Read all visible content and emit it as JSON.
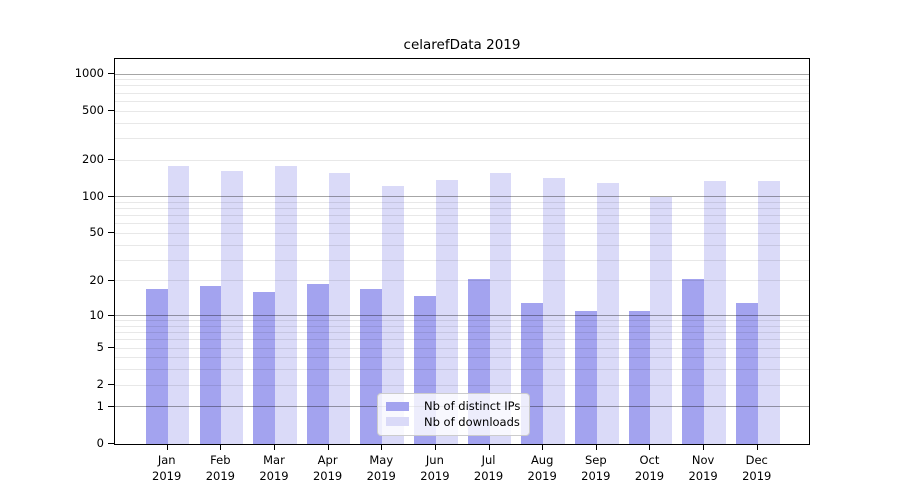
{
  "chart_data": {
    "type": "bar",
    "title": "celarefData 2019",
    "categories": [
      "Jan",
      "Feb",
      "Mar",
      "Apr",
      "May",
      "Jun",
      "Jul",
      "Aug",
      "Sep",
      "Oct",
      "Nov",
      "Dec"
    ],
    "x_year_label": "2019",
    "series": [
      {
        "name": "Nb of distinct IPs",
        "color": "#a3a3ef",
        "values": [
          17,
          18,
          16,
          19,
          17,
          15,
          21,
          13,
          11,
          11,
          21,
          13
        ]
      },
      {
        "name": "Nb of downloads",
        "color": "#dadaf8",
        "values": [
          180,
          164,
          179,
          156,
          123,
          138,
          158,
          142,
          130,
          99,
          134,
          134
        ]
      }
    ],
    "xlabel": "",
    "ylabel": "",
    "y_axis": {
      "scale": "log10(value+1)",
      "tick_values": [
        0,
        1,
        2,
        5,
        10,
        20,
        50,
        100,
        200,
        500,
        1000
      ],
      "major_grid_values": [
        1,
        10,
        100,
        1000
      ],
      "minor_grid_values": [
        2,
        3,
        4,
        5,
        6,
        7,
        8,
        9,
        20,
        30,
        40,
        50,
        60,
        70,
        80,
        90,
        200,
        300,
        400,
        500,
        600,
        700,
        800,
        900
      ],
      "ylim": [
        0,
        1320
      ]
    },
    "grid": "horizontal",
    "legend_position": "bottom-center-inside",
    "colors": {
      "frame": "#000000",
      "major_grid": "rgba(0,0,0,0.35)",
      "minor_grid": "rgba(0,0,0,0.09)",
      "legend_border": "#cccccc",
      "legend_background": "rgba(255,255,255,0.8)"
    }
  }
}
